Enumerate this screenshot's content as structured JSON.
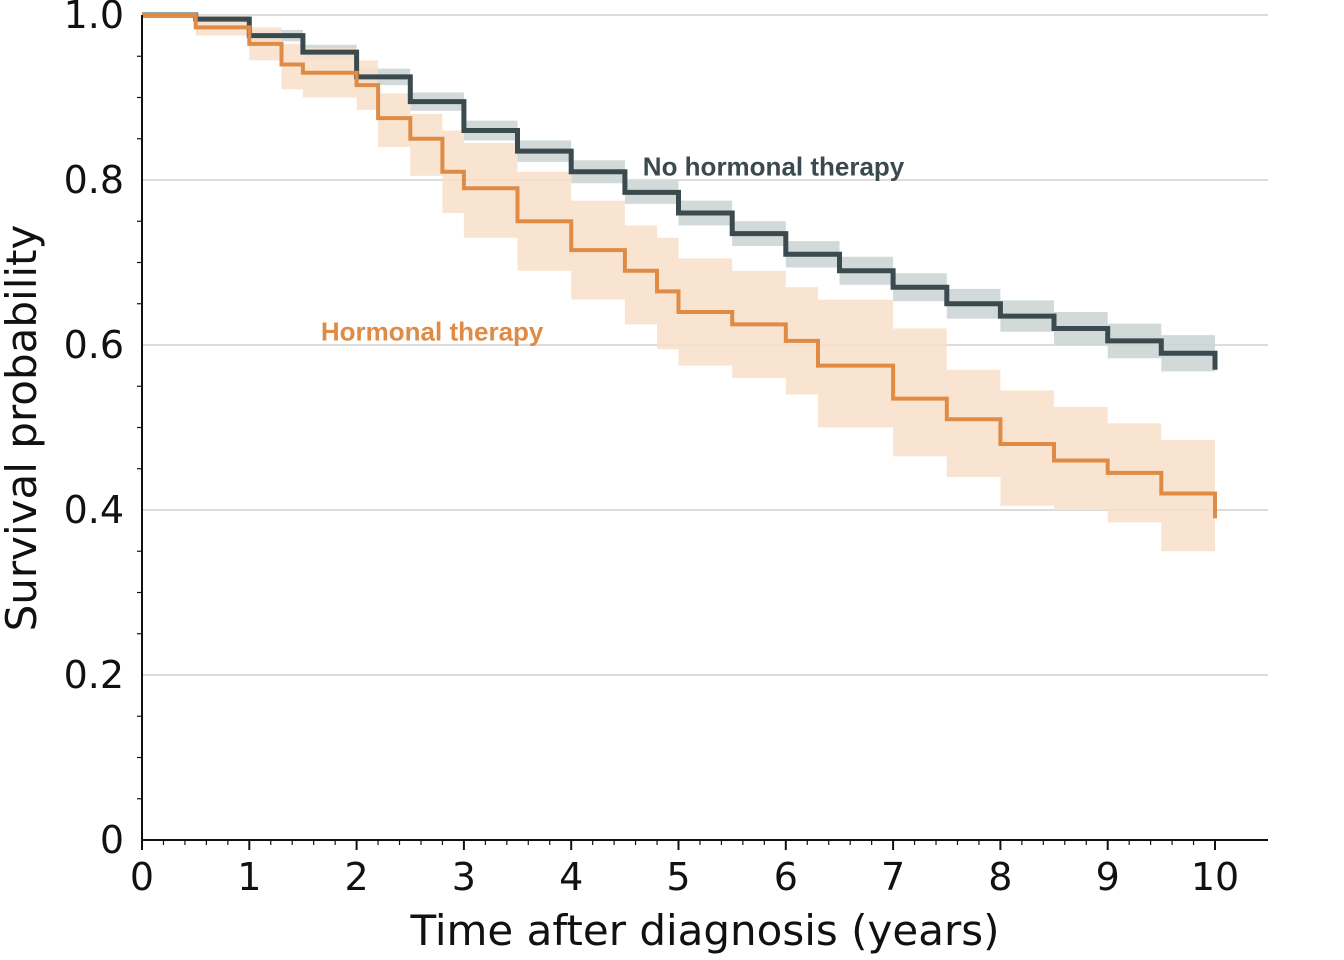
{
  "chart_data": {
    "type": "line",
    "title": "",
    "xlabel": "Time after diagnosis (years)",
    "ylabel": "Survival probability",
    "xlim": [
      0,
      10
    ],
    "ylim": [
      0,
      1
    ],
    "x_ticks": [
      "0",
      "1",
      "2",
      "3",
      "4",
      "5",
      "6",
      "7",
      "8",
      "9",
      "10"
    ],
    "y_ticks": [
      "0",
      "0.2",
      "0.4",
      "0.6",
      "0.8",
      "1.0"
    ],
    "grid": "horizontal",
    "legend": "inline labels",
    "series": [
      {
        "name": "No hormonal therapy",
        "color": "#3b4a4f",
        "band_color": "#cdd5d5",
        "x": [
          0,
          0.5,
          1,
          1.5,
          2,
          2.5,
          3,
          3.5,
          4,
          4.5,
          5,
          5.5,
          6,
          6.5,
          7,
          7.5,
          8,
          8.5,
          9,
          9.5,
          10
        ],
        "y": [
          1.0,
          0.995,
          0.975,
          0.955,
          0.925,
          0.895,
          0.86,
          0.835,
          0.81,
          0.785,
          0.76,
          0.735,
          0.71,
          0.69,
          0.67,
          0.65,
          0.635,
          0.62,
          0.605,
          0.59,
          0.57
        ],
        "lower": [
          1.0,
          0.99,
          0.968,
          0.946,
          0.915,
          0.884,
          0.848,
          0.822,
          0.796,
          0.771,
          0.745,
          0.72,
          0.694,
          0.673,
          0.653,
          0.632,
          0.616,
          0.6,
          0.584,
          0.568,
          0.548
        ],
        "upper": [
          1.0,
          1.0,
          0.982,
          0.964,
          0.935,
          0.906,
          0.872,
          0.848,
          0.824,
          0.799,
          0.775,
          0.75,
          0.726,
          0.707,
          0.687,
          0.668,
          0.654,
          0.64,
          0.626,
          0.612,
          0.592
        ]
      },
      {
        "name": "Hormonal therapy",
        "color": "#df8b45",
        "band_color": "#f8dfca",
        "x": [
          0,
          0.5,
          1,
          1.3,
          1.5,
          2,
          2.2,
          2.5,
          2.8,
          3,
          3.5,
          4,
          4.5,
          4.8,
          5,
          5.5,
          6,
          6.3,
          7,
          7.5,
          8,
          8.5,
          9,
          9.5,
          10
        ],
        "y": [
          1.0,
          0.985,
          0.965,
          0.94,
          0.93,
          0.915,
          0.875,
          0.85,
          0.81,
          0.79,
          0.75,
          0.715,
          0.69,
          0.665,
          0.64,
          0.625,
          0.605,
          0.575,
          0.535,
          0.51,
          0.48,
          0.46,
          0.445,
          0.42,
          0.39
        ],
        "lower": [
          1.0,
          0.975,
          0.945,
          0.91,
          0.9,
          0.885,
          0.84,
          0.805,
          0.76,
          0.73,
          0.69,
          0.655,
          0.625,
          0.595,
          0.575,
          0.56,
          0.54,
          0.5,
          0.465,
          0.44,
          0.405,
          0.4,
          0.385,
          0.35,
          0.325
        ],
        "upper": [
          1.0,
          1.0,
          0.985,
          0.965,
          0.96,
          0.945,
          0.905,
          0.88,
          0.86,
          0.845,
          0.81,
          0.775,
          0.745,
          0.73,
          0.705,
          0.69,
          0.67,
          0.655,
          0.62,
          0.57,
          0.545,
          0.525,
          0.505,
          0.485,
          0.475
        ]
      }
    ],
    "annotations": [
      {
        "text": "No hormonal therapy",
        "series": 0,
        "x": 6.0,
        "y": 0.815
      },
      {
        "text": "Hormonal therapy",
        "series": 1,
        "x": 3.0,
        "y": 0.615
      }
    ]
  }
}
